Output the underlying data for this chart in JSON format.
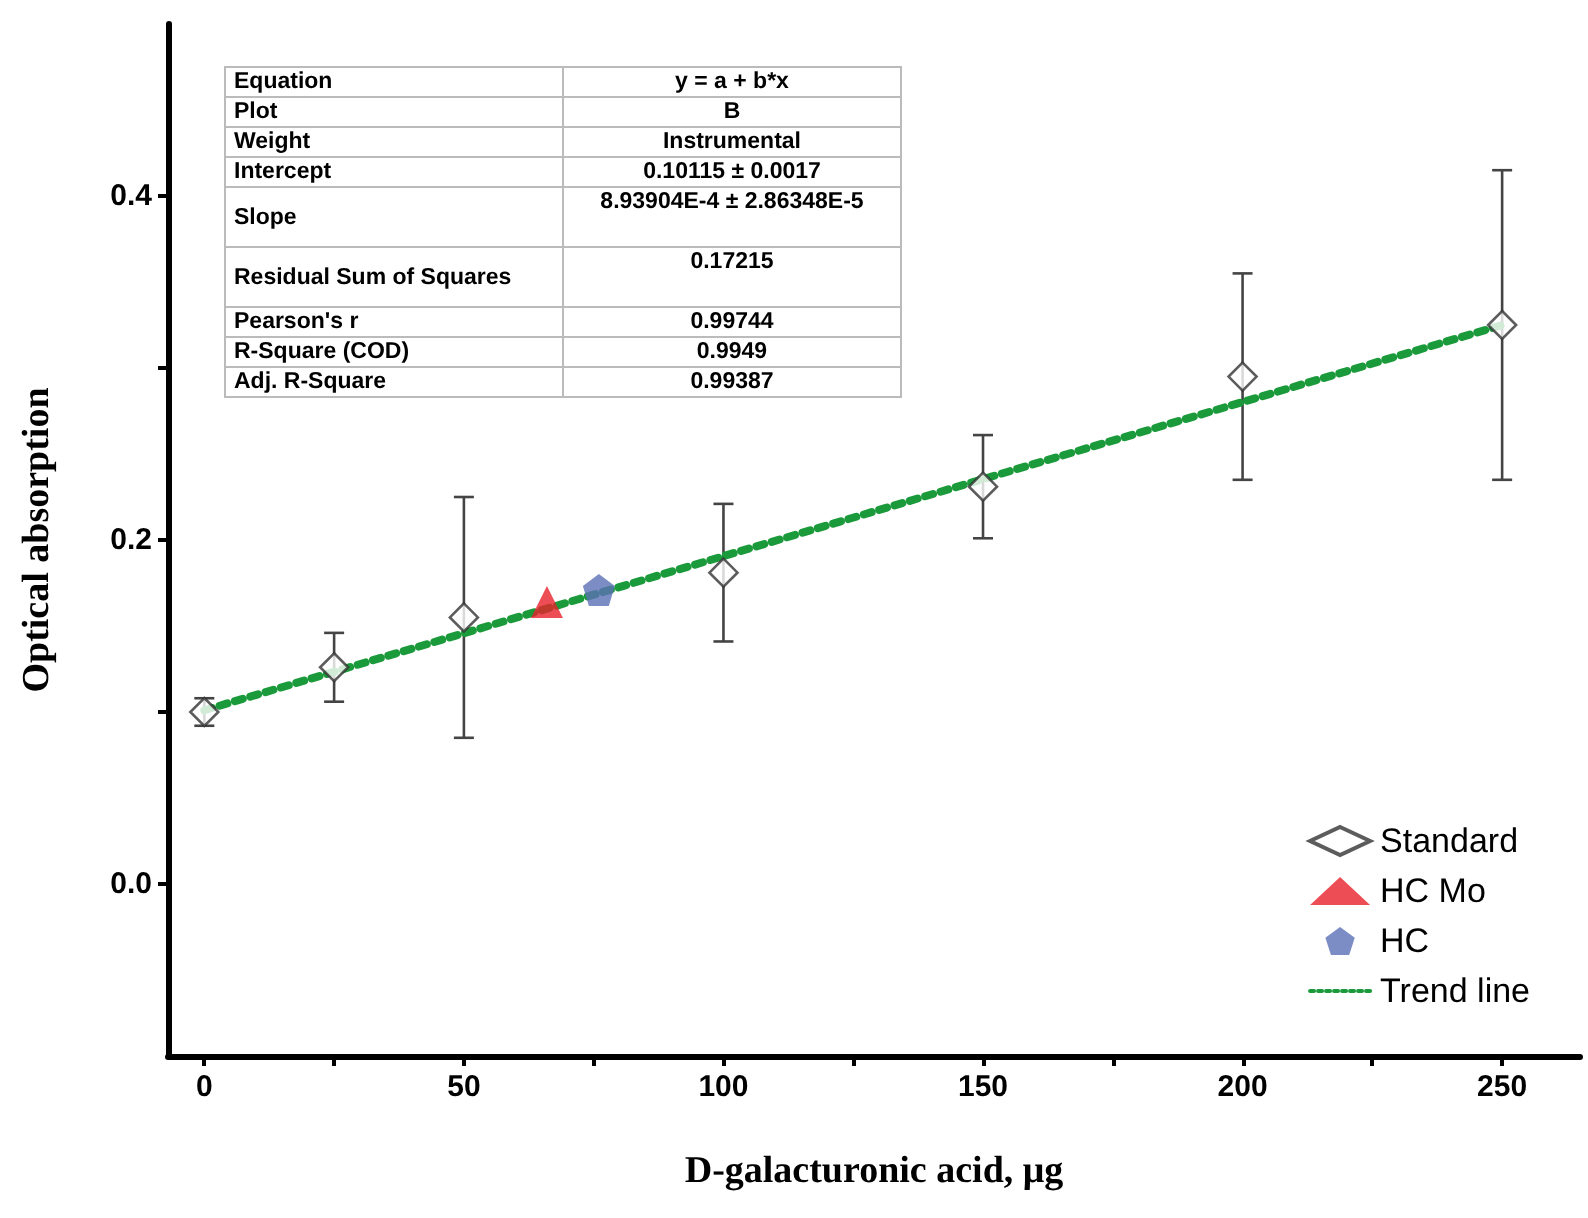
{
  "chart_data": {
    "type": "scatter",
    "xlabel": "D-galacturonic acid, μg",
    "ylabel": "Optical absorption",
    "xlim": [
      -7,
      265
    ],
    "ylim": [
      -0.1,
      0.5
    ],
    "xticks": [
      0,
      {
        "value": 25,
        "label": null
      },
      50,
      {
        "value": 75,
        "label": null
      },
      100,
      {
        "value": 125,
        "label": null
      },
      150,
      {
        "value": 175,
        "label": null
      },
      200,
      {
        "value": 225,
        "label": null
      },
      250
    ],
    "yticks": [
      {
        "value": 0,
        "label": "0.0"
      },
      {
        "value": 0.1,
        "label": null
      },
      {
        "value": 0.2,
        "label": "0.2"
      },
      {
        "value": 0.3,
        "label": null
      },
      {
        "value": 0.4,
        "label": "0.4"
      }
    ],
    "grid": false,
    "legend": "bottom right",
    "series": [
      {
        "name": "Standard",
        "marker": "diamond",
        "color": "#333333",
        "x": [
          0,
          25,
          50,
          100,
          150,
          200,
          250
        ],
        "values": [
          0.1,
          0.126,
          0.155,
          0.181,
          0.231,
          0.295,
          0.325
        ],
        "errors": [
          0.008,
          0.02,
          0.07,
          0.04,
          0.03,
          0.06,
          0.09
        ]
      },
      {
        "name": "HC Mo",
        "type": "scatter",
        "marker": "triangle",
        "color": "#e8202a",
        "x": [
          66
        ],
        "values": [
          0.164
        ]
      },
      {
        "name": "HC",
        "color": "#5b6fb5",
        "x": [
          76
        ],
        "values": [
          0.171
        ]
      },
      {
        "name": "Trend line",
        "type": "line",
        "marker": "none",
        "line_style": "dotted",
        "color": "#1a9a3a",
        "x": [
          0,
          250
        ],
        "values": [
          0.101,
          0.325
        ]
      }
    ],
    "annotations": [
      "Equation",
      "y = a + b*x",
      "Plot",
      "B",
      "Weight",
      "Instrumental",
      "Intercept",
      "0.10115 ± 0.0017",
      "Slope",
      "8.93904E-4 ± 2.86348E-5",
      "Residual Sum of Squares",
      "0.17215",
      "Pearson's r",
      "0.99744",
      "R-Square (COD)",
      "0.9949",
      "Adj. R-Square",
      "0.99387"
    ]
  }
}
